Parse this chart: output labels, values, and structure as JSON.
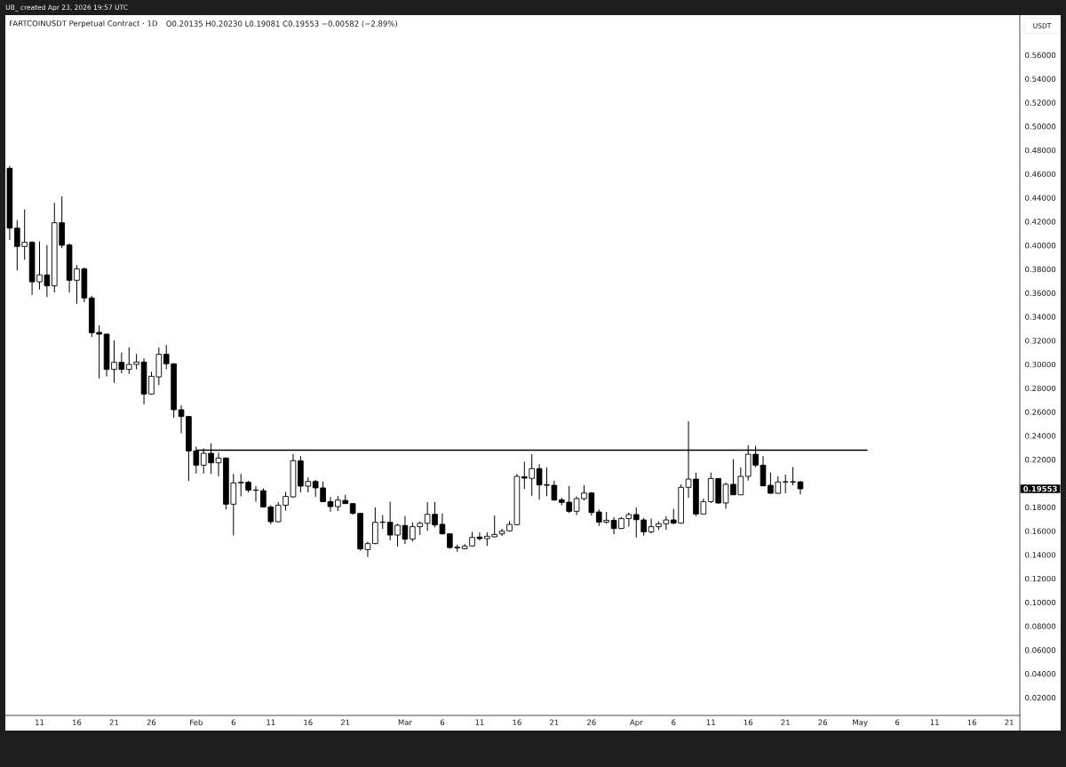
{
  "chart_data": {
    "type": "candlestick",
    "title": "FARTCOINUSDT Perpetual Contract · 1D",
    "subtitle": "O0.20135 H0.20230 L0.19081 C0.19553 −0.00582 (−2.89%)",
    "ylabel": "USDT",
    "annotations": [
      "UB_ created Apr 23, 2026 19:57 UTC",
      "0.19553"
    ],
    "color": "#000000",
    "x": [
      "2026-01-07",
      "2026-01-08",
      "2026-01-09",
      "2026-01-10",
      "2026-01-11",
      "2026-01-12",
      "2026-01-13",
      "2026-01-14",
      "2026-01-15",
      "2026-01-16",
      "2026-01-17",
      "2026-01-18",
      "2026-01-19",
      "2026-01-20",
      "2026-01-21",
      "2026-01-22",
      "2026-01-23",
      "2026-01-24",
      "2026-01-25",
      "2026-01-26",
      "2026-01-27",
      "2026-01-28",
      "2026-01-29",
      "2026-01-30",
      "2026-01-31",
      "2026-02-01",
      "2026-02-02",
      "2026-02-03",
      "2026-02-04",
      "2026-02-05",
      "2026-02-06",
      "2026-02-07",
      "2026-02-08",
      "2026-02-09",
      "2026-02-10",
      "2026-02-11",
      "2026-02-12",
      "2026-02-13",
      "2026-02-14",
      "2026-02-15",
      "2026-02-16",
      "2026-02-17",
      "2026-02-18",
      "2026-02-19",
      "2026-02-20",
      "2026-02-21",
      "2026-02-22",
      "2026-02-23",
      "2026-02-24",
      "2026-02-25",
      "2026-02-26",
      "2026-02-27",
      "2026-02-28",
      "2026-03-01",
      "2026-03-02",
      "2026-03-03",
      "2026-03-04",
      "2026-03-05",
      "2026-03-06",
      "2026-03-07",
      "2026-03-08",
      "2026-03-09",
      "2026-03-10",
      "2026-03-11",
      "2026-03-12",
      "2026-03-13",
      "2026-03-14",
      "2026-03-15",
      "2026-03-16",
      "2026-03-17",
      "2026-03-18",
      "2026-03-19",
      "2026-03-20",
      "2026-03-21",
      "2026-03-22",
      "2026-03-23",
      "2026-03-24",
      "2026-03-25",
      "2026-03-26",
      "2026-03-27",
      "2026-03-28",
      "2026-03-29",
      "2026-03-30",
      "2026-03-31",
      "2026-04-01",
      "2026-04-02",
      "2026-04-03",
      "2026-04-04",
      "2026-04-05",
      "2026-04-06",
      "2026-04-07",
      "2026-04-08",
      "2026-04-09",
      "2026-04-10",
      "2026-04-11",
      "2026-04-12",
      "2026-04-13",
      "2026-04-14",
      "2026-04-15",
      "2026-04-16",
      "2026-04-17",
      "2026-04-18",
      "2026-04-19",
      "2026-04-20",
      "2026-04-21",
      "2026-04-22",
      "2026-04-23"
    ],
    "ohlc": [
      [
        0.4649,
        0.4669,
        0.4047,
        0.4146
      ],
      [
        0.4146,
        0.4213,
        0.379,
        0.3992
      ],
      [
        0.3992,
        0.4303,
        0.388,
        0.4027
      ],
      [
        0.4027,
        0.4035,
        0.3586,
        0.3695
      ],
      [
        0.3695,
        0.4034,
        0.3631,
        0.3753
      ],
      [
        0.3753,
        0.4004,
        0.3566,
        0.3661
      ],
      [
        0.3661,
        0.4358,
        0.3606,
        0.4191
      ],
      [
        0.4191,
        0.4413,
        0.3977,
        0.4002
      ],
      [
        0.4004,
        0.4017,
        0.3606,
        0.3708
      ],
      [
        0.3708,
        0.3835,
        0.3511,
        0.3803
      ],
      [
        0.3803,
        0.3815,
        0.3524,
        0.3559
      ],
      [
        0.3559,
        0.3578,
        0.323,
        0.3267
      ],
      [
        0.327,
        0.333,
        0.2884,
        0.3255
      ],
      [
        0.3255,
        0.326,
        0.2901,
        0.2959
      ],
      [
        0.2959,
        0.3203,
        0.2846,
        0.3018
      ],
      [
        0.3018,
        0.31,
        0.2926,
        0.2959
      ],
      [
        0.2959,
        0.3145,
        0.2921,
        0.3001
      ],
      [
        0.3001,
        0.3088,
        0.2959,
        0.3021
      ],
      [
        0.3021,
        0.3051,
        0.2665,
        0.2752
      ],
      [
        0.2752,
        0.2939,
        0.2748,
        0.2901
      ],
      [
        0.2896,
        0.3143,
        0.2827,
        0.3086
      ],
      [
        0.3086,
        0.3163,
        0.2964,
        0.3006
      ],
      [
        0.3006,
        0.301,
        0.2553,
        0.262
      ],
      [
        0.262,
        0.2657,
        0.2423,
        0.2563
      ],
      [
        0.2563,
        0.2567,
        0.2022,
        0.2274
      ],
      [
        0.2274,
        0.2311,
        0.2085,
        0.2154
      ],
      [
        0.2154,
        0.2296,
        0.2085,
        0.2254
      ],
      [
        0.2254,
        0.2336,
        0.208,
        0.2174
      ],
      [
        0.2174,
        0.2259,
        0.206,
        0.2214
      ],
      [
        0.2214,
        0.2218,
        0.1781,
        0.1826
      ],
      [
        0.1826,
        0.208,
        0.1564,
        0.2005
      ],
      [
        0.2005,
        0.208,
        0.1891,
        0.201
      ],
      [
        0.201,
        0.2022,
        0.1925,
        0.1945
      ],
      [
        0.1945,
        0.198,
        0.1848,
        0.1943
      ],
      [
        0.194,
        0.196,
        0.18,
        0.1803
      ],
      [
        0.1803,
        0.1818,
        0.1659,
        0.1679
      ],
      [
        0.1679,
        0.1843,
        0.1676,
        0.1818
      ],
      [
        0.1818,
        0.193,
        0.1773,
        0.1891
      ],
      [
        0.1888,
        0.2249,
        0.188,
        0.2192
      ],
      [
        0.219,
        0.2229,
        0.1925,
        0.1978
      ],
      [
        0.1978,
        0.205,
        0.1925,
        0.2017
      ],
      [
        0.2017,
        0.203,
        0.1886,
        0.1963
      ],
      [
        0.1963,
        0.2017,
        0.1845,
        0.1848
      ],
      [
        0.1848,
        0.1886,
        0.1764,
        0.1806
      ],
      [
        0.1806,
        0.1893,
        0.1768,
        0.1861
      ],
      [
        0.1858,
        0.1905,
        0.1828,
        0.1831
      ],
      [
        0.1831,
        0.1836,
        0.1739,
        0.1749
      ],
      [
        0.1749,
        0.1752,
        0.1437,
        0.145
      ],
      [
        0.1445,
        0.1512,
        0.1383,
        0.1495
      ],
      [
        0.1495,
        0.1798,
        0.149,
        0.1674
      ],
      [
        0.1674,
        0.1736,
        0.1619,
        0.1676
      ],
      [
        0.1674,
        0.1848,
        0.1522,
        0.1567
      ],
      [
        0.1567,
        0.1662,
        0.147,
        0.1649
      ],
      [
        0.1647,
        0.1726,
        0.1492,
        0.1532
      ],
      [
        0.1532,
        0.1674,
        0.1512,
        0.1637
      ],
      [
        0.1637,
        0.1681,
        0.1567,
        0.1666
      ],
      [
        0.1666,
        0.1843,
        0.1602,
        0.1741
      ],
      [
        0.1741,
        0.1846,
        0.1632,
        0.1652
      ],
      [
        0.1657,
        0.1749,
        0.1571,
        0.1577
      ],
      [
        0.1577,
        0.158,
        0.1452,
        0.1462
      ],
      [
        0.1464,
        0.1487,
        0.1427,
        0.146
      ],
      [
        0.1452,
        0.149,
        0.1449,
        0.1475
      ],
      [
        0.1475,
        0.1594,
        0.147,
        0.1547
      ],
      [
        0.155,
        0.1589,
        0.152,
        0.1537
      ],
      [
        0.1537,
        0.1589,
        0.1475,
        0.1557
      ],
      [
        0.1552,
        0.1731,
        0.1549,
        0.1572
      ],
      [
        0.1577,
        0.1619,
        0.1559,
        0.1599
      ],
      [
        0.1602,
        0.1684,
        0.1597,
        0.1656
      ],
      [
        0.1654,
        0.208,
        0.165,
        0.206
      ],
      [
        0.2057,
        0.2184,
        0.1955,
        0.2045
      ],
      [
        0.2043,
        0.2246,
        0.1898,
        0.2125
      ],
      [
        0.2125,
        0.2162,
        0.1863,
        0.1988
      ],
      [
        0.199,
        0.2135,
        0.1893,
        0.1985
      ],
      [
        0.1985,
        0.2022,
        0.1856,
        0.1861
      ],
      [
        0.1863,
        0.1881,
        0.1818,
        0.1841
      ],
      [
        0.1843,
        0.1978,
        0.1751,
        0.1766
      ],
      [
        0.1766,
        0.1891,
        0.1736,
        0.1873
      ],
      [
        0.1873,
        0.1988,
        0.1856,
        0.192
      ],
      [
        0.192,
        0.193,
        0.1731,
        0.1756
      ],
      [
        0.1761,
        0.1781,
        0.1644,
        0.1676
      ],
      [
        0.1676,
        0.1761,
        0.1662,
        0.1691
      ],
      [
        0.1691,
        0.1716,
        0.1574,
        0.1622
      ],
      [
        0.1622,
        0.1719,
        0.1617,
        0.1706
      ],
      [
        0.1706,
        0.1756,
        0.1637,
        0.1739
      ],
      [
        0.1739,
        0.1798,
        0.1547,
        0.1696
      ],
      [
        0.1694,
        0.1711,
        0.1562,
        0.1594
      ],
      [
        0.1594,
        0.1706,
        0.1582,
        0.1637
      ],
      [
        0.1637,
        0.1681,
        0.1612,
        0.1662
      ],
      [
        0.1662,
        0.1726,
        0.1612,
        0.1694
      ],
      [
        0.1694,
        0.1788,
        0.1657,
        0.1667
      ],
      [
        0.1667,
        0.1993,
        0.1662,
        0.1968
      ],
      [
        0.1968,
        0.2523,
        0.1881,
        0.2037
      ],
      [
        0.2037,
        0.2092,
        0.1726,
        0.1744
      ],
      [
        0.1744,
        0.1873,
        0.174,
        0.1848
      ],
      [
        0.1848,
        0.2092,
        0.1836,
        0.2042
      ],
      [
        0.2042,
        0.2045,
        0.1831,
        0.1836
      ],
      [
        0.1836,
        0.2005,
        0.1788,
        0.1993
      ],
      [
        0.1993,
        0.2204,
        0.1903,
        0.1905
      ],
      [
        0.1905,
        0.2135,
        0.1903,
        0.206
      ],
      [
        0.206,
        0.2321,
        0.2025,
        0.2246
      ],
      [
        0.2246,
        0.2316,
        0.2137,
        0.2154
      ],
      [
        0.2154,
        0.2229,
        0.1978,
        0.198
      ],
      [
        0.1985,
        0.2092,
        0.1915,
        0.1918
      ],
      [
        0.1918,
        0.206,
        0.1915,
        0.2013
      ],
      [
        0.2013,
        0.2075,
        0.1918,
        0.2015
      ],
      [
        0.2015,
        0.2139,
        0.1985,
        0.2013
      ],
      [
        0.20135,
        0.2023,
        0.19081,
        0.19553
      ]
    ],
    "series": [
      {
        "type": "line",
        "x": [
          "2026-02-01",
          "2026-05-02"
        ],
        "values": [
          0.228,
          0.228
        ],
        "color": "#000000"
      }
    ],
    "xlim": [
      "2026-01-06T10:00",
      "2026-05-22T10:00"
    ],
    "ylim": [
      0.0051,
      0.5936
    ],
    "xticks": [
      {
        "value": "2026-01-11",
        "label": "11"
      },
      {
        "value": "2026-01-16",
        "label": "16"
      },
      {
        "value": "2026-01-21",
        "label": "21"
      },
      {
        "value": "2026-01-26",
        "label": "26"
      },
      {
        "value": "2026-02-01",
        "label": "Feb"
      },
      {
        "value": "2026-02-06",
        "label": "6"
      },
      {
        "value": "2026-02-11",
        "label": "11"
      },
      {
        "value": "2026-02-16",
        "label": "16"
      },
      {
        "value": "2026-02-21",
        "label": "21"
      },
      {
        "value": "2026-03-01",
        "label": "Mar"
      },
      {
        "value": "2026-03-06",
        "label": "6"
      },
      {
        "value": "2026-03-11",
        "label": "11"
      },
      {
        "value": "2026-03-16",
        "label": "16"
      },
      {
        "value": "2026-03-21",
        "label": "21"
      },
      {
        "value": "2026-03-26",
        "label": "26"
      },
      {
        "value": "2026-04-01",
        "label": "Apr"
      },
      {
        "value": "2026-04-06",
        "label": "6"
      },
      {
        "value": "2026-04-11",
        "label": "11"
      },
      {
        "value": "2026-04-16",
        "label": "16"
      },
      {
        "value": "2026-04-21",
        "label": "21"
      },
      {
        "value": "2026-04-26",
        "label": "26"
      },
      {
        "value": "2026-05-01",
        "label": "May"
      },
      {
        "value": "2026-05-06",
        "label": "6"
      },
      {
        "value": "2026-05-11",
        "label": "11"
      },
      {
        "value": "2026-05-16",
        "label": "16"
      },
      {
        "value": "2026-05-21",
        "label": "21"
      }
    ],
    "yticks": [
      {
        "value": 0.02,
        "label": "0.02000"
      },
      {
        "value": 0.04,
        "label": "0.04000"
      },
      {
        "value": 0.06,
        "label": "0.06000"
      },
      {
        "value": 0.08,
        "label": "0.08000"
      },
      {
        "value": 0.1,
        "label": "0.10000"
      },
      {
        "value": 0.12,
        "label": "0.12000"
      },
      {
        "value": 0.14,
        "label": "0.14000"
      },
      {
        "value": 0.16,
        "label": "0.16000"
      },
      {
        "value": 0.18,
        "label": "0.18000"
      },
      {
        "value": 0.22,
        "label": "0.22000"
      },
      {
        "value": 0.24,
        "label": "0.24000"
      },
      {
        "value": 0.26,
        "label": "0.26000"
      },
      {
        "value": 0.28,
        "label": "0.28000"
      },
      {
        "value": 0.3,
        "label": "0.30000"
      },
      {
        "value": 0.32,
        "label": "0.32000"
      },
      {
        "value": 0.34,
        "label": "0.34000"
      },
      {
        "value": 0.36,
        "label": "0.36000"
      },
      {
        "value": 0.38,
        "label": "0.38000"
      },
      {
        "value": 0.4,
        "label": "0.40000"
      },
      {
        "value": 0.42,
        "label": "0.42000"
      },
      {
        "value": 0.44,
        "label": "0.44000"
      },
      {
        "value": 0.46,
        "label": "0.46000"
      },
      {
        "value": 0.48,
        "label": "0.48000"
      },
      {
        "value": 0.5,
        "label": "0.50000"
      },
      {
        "value": 0.52,
        "label": "0.52000"
      },
      {
        "value": 0.54,
        "label": "0.54000"
      },
      {
        "value": 0.56,
        "label": "0.56000"
      }
    ]
  }
}
